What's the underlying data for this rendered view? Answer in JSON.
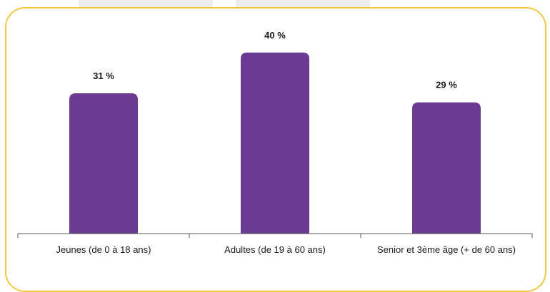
{
  "chart_data": {
    "type": "bar",
    "categories": [
      "Jeunes (de 0 à 18 ans)",
      "Adultes (de 19 à 60 ans)",
      "Senior et 3ème âge (+ de 60 ans)"
    ],
    "values": [
      31,
      40,
      29
    ],
    "data_labels": [
      "31 %",
      "40 %",
      "29 %"
    ],
    "unit": "%",
    "ylim": [
      0,
      45
    ],
    "grid": false,
    "bar_color": "#6b3a93",
    "frame_color": "#f2c744"
  }
}
